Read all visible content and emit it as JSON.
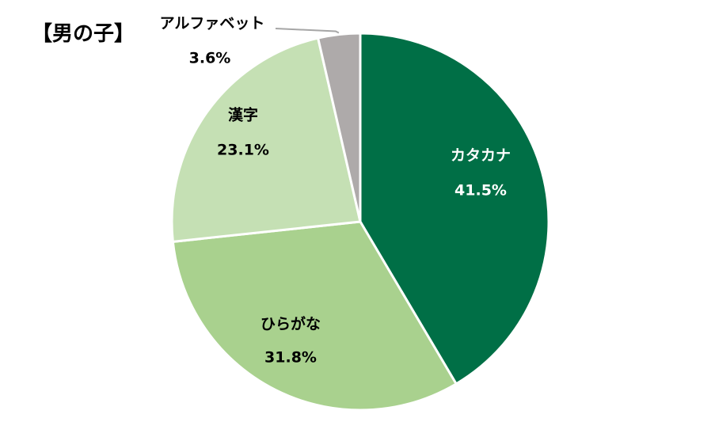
{
  "chart_data": {
    "type": "pie",
    "title": "【男の子】",
    "start_angle_deg": 0,
    "direction": "clockwise",
    "slices": [
      {
        "label": "カタカナ",
        "value": 41.5,
        "value_label": "41.5%",
        "color": "#006F46",
        "text_color": "#FFFFFF"
      },
      {
        "label": "ひらがな",
        "value": 31.8,
        "value_label": "31.8%",
        "color": "#A9D18E",
        "text_color": "#000000"
      },
      {
        "label": "漢字",
        "value": 23.1,
        "value_label": "23.1%",
        "color": "#C5E0B4",
        "text_color": "#000000"
      },
      {
        "label": "アルファベット",
        "value": 3.6,
        "value_label": "3.6%",
        "color": "#AEAAAA",
        "text_color": "#000000"
      }
    ],
    "border_color": "#FFFFFF"
  }
}
